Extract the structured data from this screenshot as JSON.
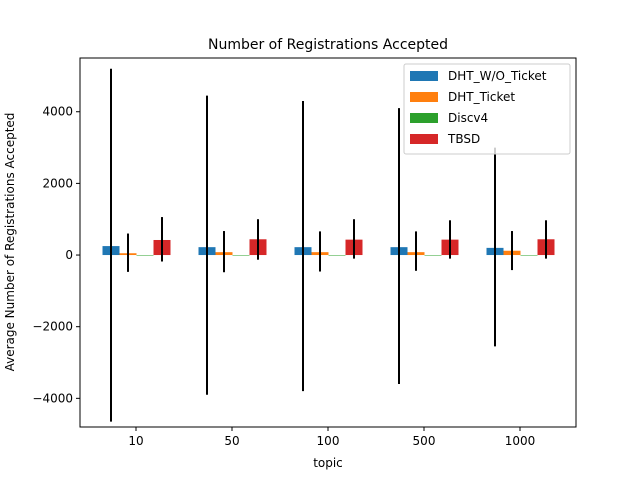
{
  "chart_data": {
    "type": "bar",
    "title": "Number of Registrations Accepted",
    "xlabel": "topic",
    "ylabel": "Average Number of Registrations Accepted",
    "categories": [
      "10",
      "50",
      "100",
      "500",
      "1000"
    ],
    "ylim": [
      -4800,
      5500
    ],
    "yticks": [
      -4000,
      -2000,
      0,
      2000,
      4000
    ],
    "grid": false,
    "legend_position": "top-right",
    "series": [
      {
        "name": "DHT_W/O_Ticket",
        "color": "#1f77b4",
        "values": [
          250,
          220,
          220,
          220,
          200
        ],
        "err_low": [
          -4650,
          -3900,
          -3800,
          -3600,
          -2550
        ],
        "err_high": [
          5200,
          4450,
          4300,
          4100,
          3000
        ]
      },
      {
        "name": "DHT_Ticket",
        "color": "#ff7f0e",
        "values": [
          50,
          80,
          80,
          80,
          120
        ],
        "err_low": [
          -470,
          -480,
          -460,
          -440,
          -420
        ],
        "err_high": [
          600,
          670,
          660,
          660,
          670
        ]
      },
      {
        "name": "Discv4",
        "color": "#2ca02c",
        "values": [
          0,
          0,
          0,
          0,
          0
        ],
        "err_low": null,
        "err_high": null
      },
      {
        "name": "TBSD",
        "color": "#d62728",
        "values": [
          420,
          440,
          430,
          430,
          440
        ],
        "err_low": [
          -180,
          -130,
          -100,
          -100,
          -100
        ],
        "err_high": [
          1060,
          1000,
          1000,
          970,
          970
        ]
      }
    ]
  }
}
